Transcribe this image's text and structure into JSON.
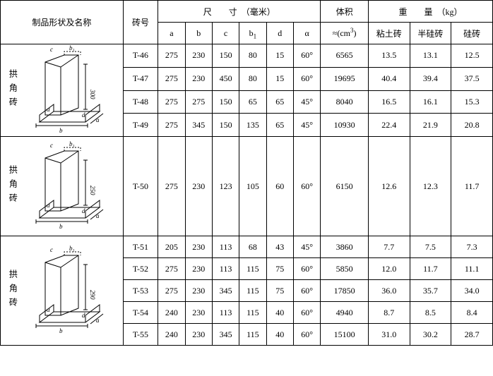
{
  "headers": {
    "shape": "制品形状及名称",
    "num": "砖号",
    "dim_title": "尺　　寸　（毫米）",
    "a": "a",
    "b": "b",
    "c": "c",
    "b1": "b",
    "b1_sub": "1",
    "d": "d",
    "alpha": "α",
    "vol_title": "体积",
    "vol_sub_prefix": "≈(cm",
    "vol_sub_sup": "3",
    "vol_sub_suffix": ")",
    "wt_title": "重　　量　（kg）",
    "wt1": "粘土砖",
    "wt2": "半硅砖",
    "wt3": "硅砖"
  },
  "groups": [
    {
      "label": "拱角砖",
      "shape_height": "300",
      "rows": [
        {
          "num": "T-46",
          "a": "275",
          "b": "230",
          "c": "150",
          "b1": "80",
          "d": "15",
          "alpha": "60°",
          "vol": "6565",
          "w1": "13.5",
          "w2": "13.1",
          "w3": "12.5"
        },
        {
          "num": "T-47",
          "a": "275",
          "b": "230",
          "c": "450",
          "b1": "80",
          "d": "15",
          "alpha": "60°",
          "vol": "19695",
          "w1": "40.4",
          "w2": "39.4",
          "w3": "37.5"
        },
        {
          "num": "T-48",
          "a": "275",
          "b": "275",
          "c": "150",
          "b1": "65",
          "d": "65",
          "alpha": "45°",
          "vol": "8040",
          "w1": "16.5",
          "w2": "16.1",
          "w3": "15.3"
        },
        {
          "num": "T-49",
          "a": "275",
          "b": "345",
          "c": "150",
          "b1": "135",
          "d": "65",
          "alpha": "45°",
          "vol": "10930",
          "w1": "22.4",
          "w2": "21.9",
          "w3": "20.8"
        }
      ]
    },
    {
      "label": "拱角砖",
      "shape_height": "250",
      "rows": [
        {
          "num": "T-50",
          "a": "275",
          "b": "230",
          "c": "123",
          "b1": "105",
          "d": "60",
          "alpha": "60°",
          "vol": "6150",
          "w1": "12.6",
          "w2": "12.3",
          "w3": "11.7"
        }
      ]
    },
    {
      "label": "拱角砖",
      "shape_height": "290",
      "rows": [
        {
          "num": "T-51",
          "a": "205",
          "b": "230",
          "c": "113",
          "b1": "68",
          "d": "43",
          "alpha": "45°",
          "vol": "3860",
          "w1": "7.7",
          "w2": "7.5",
          "w3": "7.3"
        },
        {
          "num": "T-52",
          "a": "275",
          "b": "230",
          "c": "113",
          "b1": "115",
          "d": "75",
          "alpha": "60°",
          "vol": "5850",
          "w1": "12.0",
          "w2": "11.7",
          "w3": "11.1"
        },
        {
          "num": "T-53",
          "a": "275",
          "b": "230",
          "c": "345",
          "b1": "115",
          "d": "75",
          "alpha": "60°",
          "vol": "17850",
          "w1": "36.0",
          "w2": "35.7",
          "w3": "34.0"
        },
        {
          "num": "T-54",
          "a": "240",
          "b": "230",
          "c": "113",
          "b1": "115",
          "d": "40",
          "alpha": "60°",
          "vol": "4940",
          "w1": "8.7",
          "w2": "8.5",
          "w3": "8.4"
        },
        {
          "num": "T-55",
          "a": "240",
          "b": "230",
          "c": "345",
          "b1": "115",
          "d": "40",
          "alpha": "60°",
          "vol": "15100",
          "w1": "31.0",
          "w2": "30.2",
          "w3": "28.7"
        }
      ]
    }
  ]
}
